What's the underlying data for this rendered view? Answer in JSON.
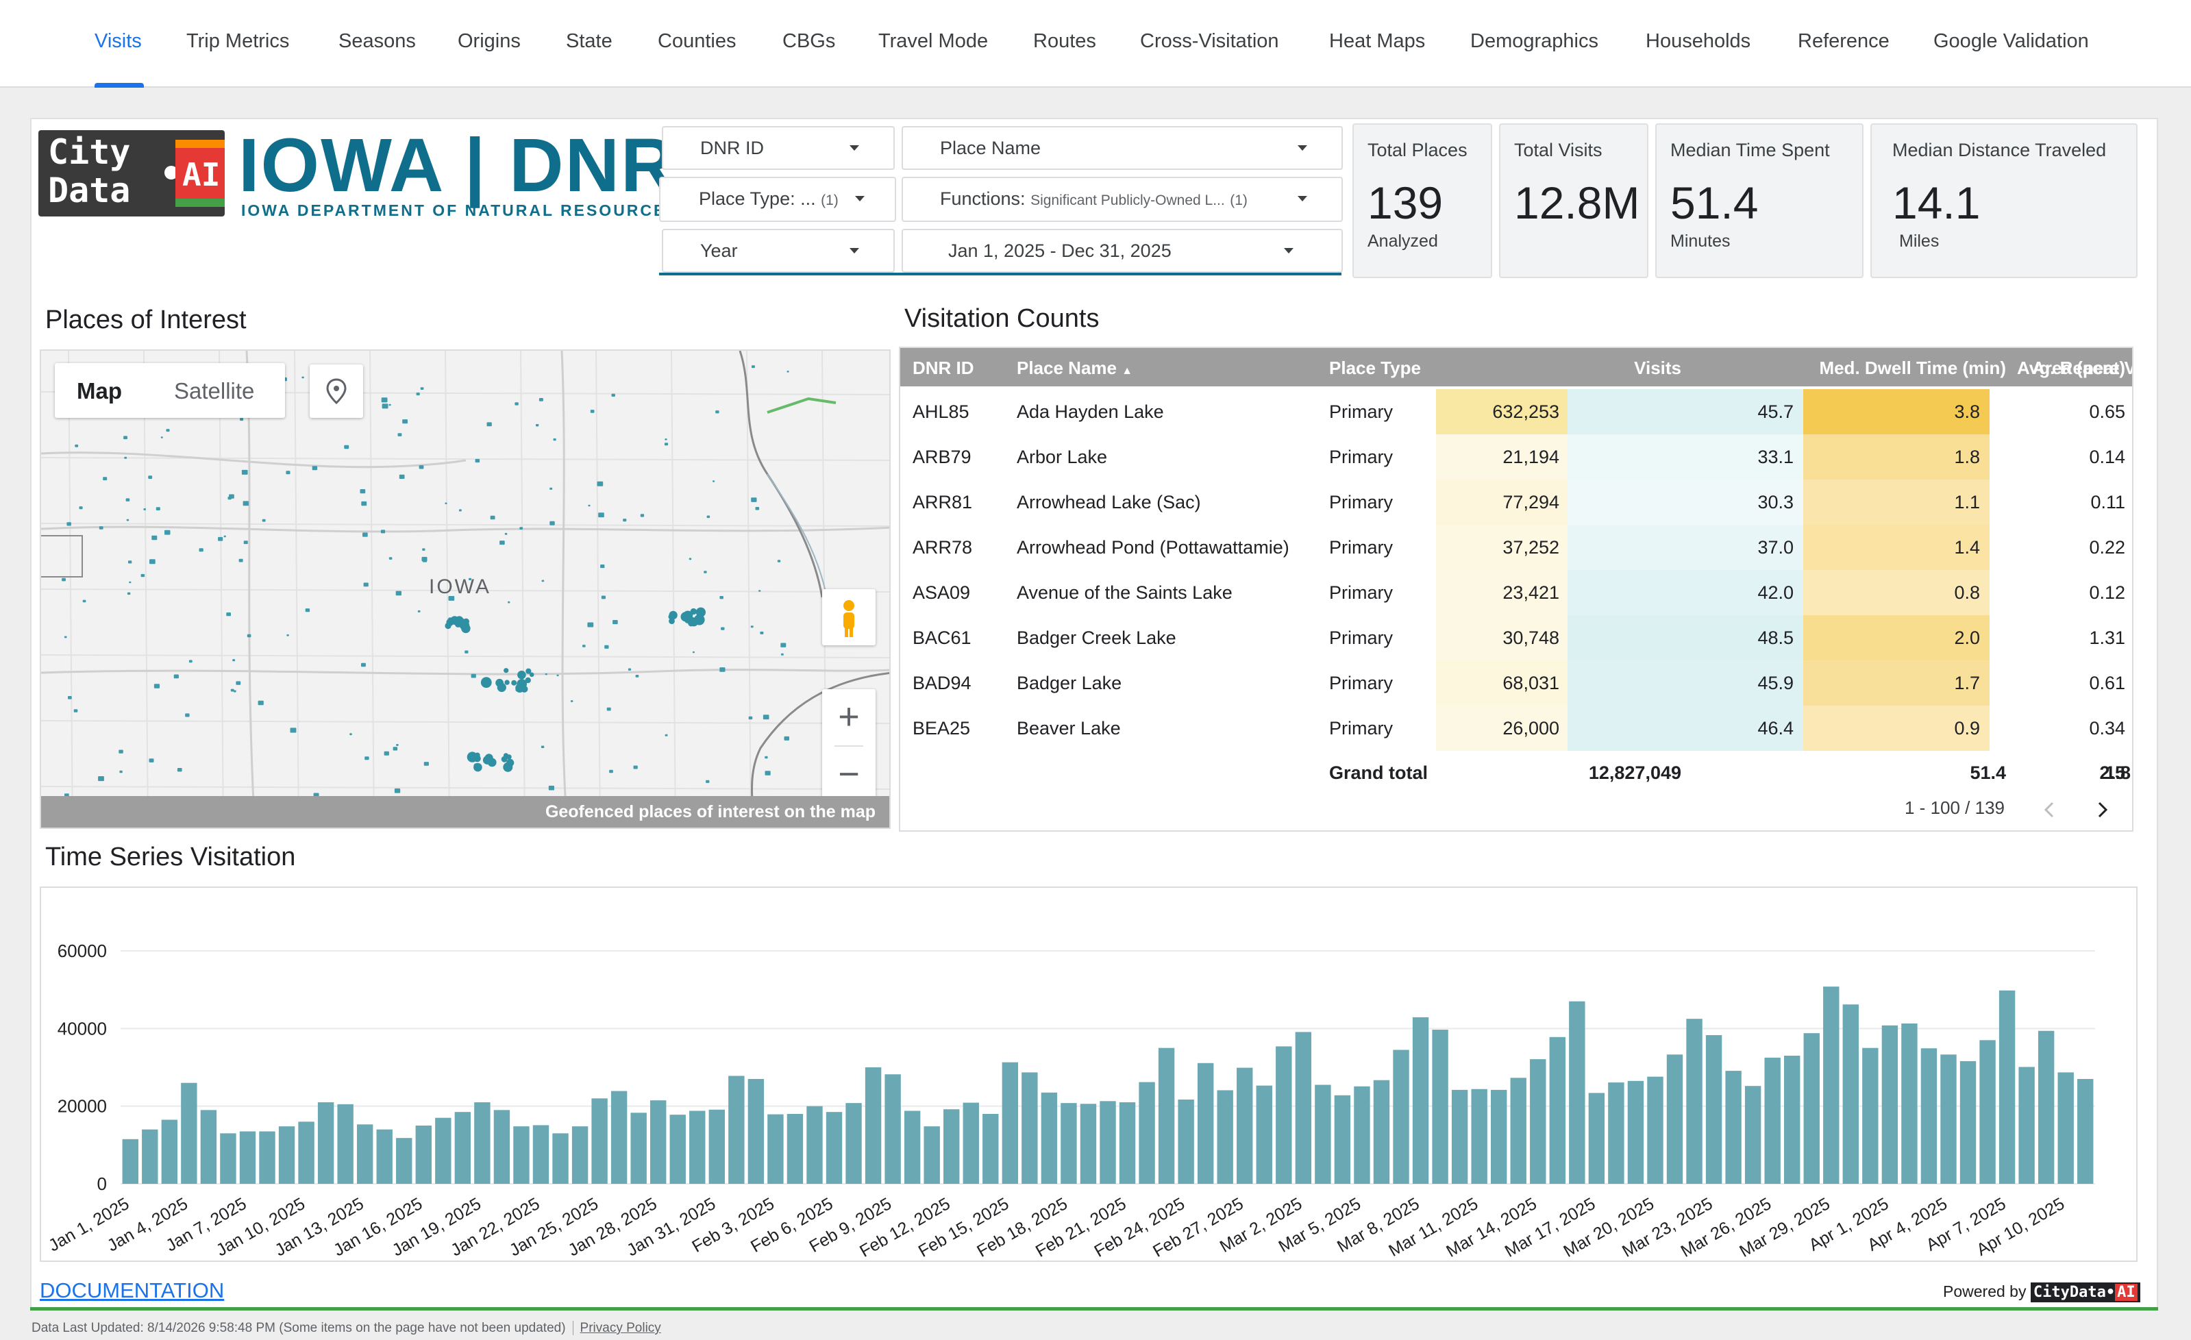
{
  "nav": {
    "tabs": [
      "Visits",
      "Trip Metrics",
      "Seasons",
      "Origins",
      "State",
      "Counties",
      "CBGs",
      "Travel Mode",
      "Routes",
      "Cross-Visitation",
      "Heat Maps",
      "Demographics",
      "Households",
      "Reference",
      "Google Validation"
    ],
    "active": "Visits"
  },
  "logo": {
    "city_data": "City\nData",
    "ai": "AI",
    "iowa": "IOWA | DNR",
    "subtitle": "IOWA DEPARTMENT OF NATURAL RESOURCES"
  },
  "filters": {
    "dnr_id": "DNR ID",
    "place_name": "Place Name",
    "place_type_label": "Place Type: ...",
    "place_type_count": "(1)",
    "functions_label": "Functions:",
    "functions_value": "Significant Publicly-Owned L...",
    "functions_count": "(1)",
    "year": "Year",
    "date_range": "Jan 1, 2025 - Dec 31, 2025"
  },
  "kpis": [
    {
      "label": "Total Places",
      "value": "139",
      "sub": "Analyzed"
    },
    {
      "label": "Total Visits",
      "value": "12.8M",
      "sub": ""
    },
    {
      "label": "Median Time Spent",
      "value": "51.4",
      "sub": "Minutes"
    },
    {
      "label": "Median Distance Traveled",
      "value": "14.1",
      "sub": "Miles"
    }
  ],
  "map": {
    "title": "Places of Interest",
    "toggle_map": "Map",
    "toggle_satellite": "Satellite",
    "state_label": "IOWA",
    "caption": "Geofenced places of interest on the map",
    "zoom_in": "+",
    "zoom_out": "−"
  },
  "table": {
    "title": "Visitation Counts",
    "columns": [
      "DNR ID",
      "Place Name",
      "Place Type",
      "Visits",
      "Med. Dwell Time (min)",
      "Avg. Repeat Visits",
      "Area (acre)"
    ],
    "sort_indicator": "▲",
    "rows": [
      {
        "id": "AHL85",
        "name": "Ada Hayden Lake",
        "type": "Primary",
        "visits": "632,253",
        "dwell": "45.7",
        "repeat": "3.8",
        "area": "0.65",
        "vint": 0.95,
        "dint": 0.72,
        "rint": 0.95
      },
      {
        "id": "ARB79",
        "name": "Arbor Lake",
        "type": "Primary",
        "visits": "21,194",
        "dwell": "33.1",
        "repeat": "1.8",
        "area": "0.14",
        "vint": 0.05,
        "dint": 0.25,
        "rint": 0.45
      },
      {
        "id": "ARR81",
        "name": "Arrowhead Lake (Sac)",
        "type": "Primary",
        "visits": "77,294",
        "dwell": "30.3",
        "repeat": "1.1",
        "area": "0.11",
        "vint": 0.15,
        "dint": 0.15,
        "rint": 0.28
      },
      {
        "id": "ARR78",
        "name": "Arrowhead Pond (Pottawattamie)",
        "type": "Primary",
        "visits": "37,252",
        "dwell": "37.0",
        "repeat": "1.4",
        "area": "0.22",
        "vint": 0.08,
        "dint": 0.4,
        "rint": 0.35
      },
      {
        "id": "ASA09",
        "name": "Avenue of the Saints Lake",
        "type": "Primary",
        "visits": "23,421",
        "dwell": "42.0",
        "repeat": "0.8",
        "area": "0.12",
        "vint": 0.05,
        "dint": 0.6,
        "rint": 0.2
      },
      {
        "id": "BAC61",
        "name": "Badger Creek Lake",
        "type": "Primary",
        "visits": "30,748",
        "dwell": "48.5",
        "repeat": "2.0",
        "area": "1.31",
        "vint": 0.06,
        "dint": 0.8,
        "rint": 0.5
      },
      {
        "id": "BAD94",
        "name": "Badger Lake",
        "type": "Primary",
        "visits": "68,031",
        "dwell": "45.9",
        "repeat": "1.7",
        "area": "0.61",
        "vint": 0.13,
        "dint": 0.72,
        "rint": 0.42
      },
      {
        "id": "BEA25",
        "name": "Beaver Lake",
        "type": "Primary",
        "visits": "26,000",
        "dwell": "46.4",
        "repeat": "0.9",
        "area": "0.34",
        "vint": 0.05,
        "dint": 0.74,
        "rint": 0.22
      }
    ],
    "grand_total": {
      "label": "Grand total",
      "visits": "12,827,049",
      "dwell": "51.4",
      "repeat": "1.8",
      "area": "2.5"
    },
    "pagination": "1 - 100 / 139"
  },
  "timeseries": {
    "title": "Time Series Visitation"
  },
  "chart_data": {
    "type": "bar",
    "title": "Time Series Visitation",
    "ylim": [
      0,
      60000
    ],
    "yticks": [
      0,
      20000,
      40000,
      60000
    ],
    "grid": true,
    "start": "2025-01-01",
    "tick_labels": [
      "Jan 1, 2025",
      "Jan 4, 2025",
      "Jan 7, 2025",
      "Jan 10, 2025",
      "Jan 13, 2025",
      "Jan 16, 2025",
      "Jan 19, 2025",
      "Jan 22, 2025",
      "Jan 25, 2025",
      "Jan 28, 2025",
      "Jan 31, 2025",
      "Feb 3, 2025",
      "Feb 6, 2025",
      "Feb 9, 2025",
      "Feb 12, 2025",
      "Feb 15, 2025",
      "Feb 18, 2025",
      "Feb 21, 2025",
      "Feb 24, 2025",
      "Feb 27, 2025",
      "Mar 2, 2025",
      "Mar 5, 2025",
      "Mar 8, 2025",
      "Mar 11, 2025",
      "Mar 14, 2025",
      "Mar 17, 2025",
      "Mar 20, 2025",
      "Mar 23, 2025",
      "Mar 26, 2025",
      "Mar 29, 2025",
      "Apr 1, 2025",
      "Apr 4, 2025",
      "Apr 7, 2025",
      "Apr 10, 2025"
    ],
    "values": [
      11500,
      14000,
      16500,
      26000,
      19000,
      13000,
      13500,
      13500,
      14800,
      16000,
      21000,
      20500,
      15300,
      14000,
      11800,
      15000,
      17000,
      18500,
      21000,
      19000,
      14800,
      15100,
      13000,
      14800,
      22000,
      23900,
      18300,
      21500,
      17800,
      18800,
      19100,
      27800,
      27000,
      17900,
      18000,
      20000,
      18500,
      20800,
      30000,
      28200,
      18800,
      14800,
      19200,
      20900,
      18000,
      31300,
      28700,
      23500,
      20800,
      20600,
      21300,
      21000,
      26200,
      35000,
      21700,
      31100,
      24100,
      29900,
      25300,
      35400,
      39100,
      25500,
      22800,
      25100,
      26700,
      34500,
      42900,
      39700,
      24200,
      24400,
      24200,
      27300,
      32100,
      37800,
      47000,
      23400,
      26100,
      26500,
      27600,
      33300,
      42500,
      38300,
      29100,
      25200,
      32500,
      33000,
      38800,
      50800,
      46200,
      35000,
      40800,
      41300,
      34900,
      33300,
      31600,
      37000,
      49800,
      30100,
      39400,
      28700,
      27000
    ]
  },
  "footer": {
    "documentation": "DOCUMENTATION",
    "powered_by": "Powered by",
    "brand": "CityData",
    "brand_ai": "AI",
    "last_updated": "Data Last Updated: 8/14/2026 9:58:48 PM (Some items on the page have not been updated)",
    "privacy": "Privacy Policy"
  },
  "colors": {
    "accent": "#1a73e8",
    "bar": "#6aa8b3",
    "header": "#9e9e9e",
    "visits_heat": "#f9e79f",
    "dwell_heat": "#d6eef0",
    "repeat_heat": "#f5c84c"
  }
}
